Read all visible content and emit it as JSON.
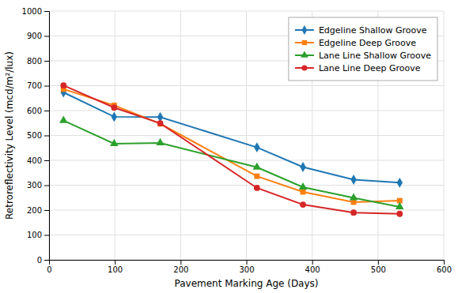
{
  "chart_data": {
    "type": "line",
    "xlabel": "Pavement Marking Age (Days)",
    "ylabel": "Retroreflectivity Level (mcd/m²/lux)",
    "x": [
      22,
      99,
      169,
      316,
      386,
      463,
      533
    ],
    "series": [
      {
        "name": "Edgeline Shallow Groove",
        "values": [
          673,
          575,
          574,
          452,
          373,
          322,
          310
        ],
        "marker": "diamond"
      },
      {
        "name": "Edgeline Deep Groove",
        "values": [
          686,
          621,
          547,
          336,
          273,
          232,
          238
        ],
        "marker": "square"
      },
      {
        "name": "Lane Line Shallow Groove",
        "values": [
          560,
          467,
          470,
          372,
          292,
          249,
          213
        ],
        "marker": "triangle"
      },
      {
        "name": "Lane Line Deep Groove",
        "values": [
          701,
          612,
          549,
          289,
          222,
          190,
          185
        ],
        "marker": "circle"
      }
    ],
    "xlim": [
      0,
      600
    ],
    "ylim": [
      0,
      1000
    ],
    "xticks": [
      0,
      100,
      200,
      300,
      400,
      500,
      600
    ],
    "yticks": [
      0,
      100,
      200,
      300,
      400,
      500,
      600,
      700,
      800,
      900,
      1000
    ],
    "grid": true,
    "legend": "upper right"
  }
}
